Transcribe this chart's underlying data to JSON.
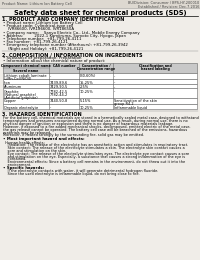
{
  "bg_color": "#f0ede8",
  "header_left": "Product Name: Lithium Ion Battery Cell",
  "header_right_line1": "BU/Division: Consumer / BPS-HY-200010",
  "header_right_line2": "Established / Revision: Dec.7.2016",
  "title": "Safety data sheet for chemical products (SDS)",
  "section1_title": "1. PRODUCT AND COMPANY IDENTIFICATION",
  "section1_lines": [
    "• Product name: Lithium Ion Battery Cell",
    "• Product code: Cylindrical-type cell",
    "    IVR86600, IVR186600, IVR18650A",
    "• Company name:    Sanyo Electric Co., Ltd., Mobile Energy Company",
    "• Address:         2022-1 Kamiiruma, Sumoto City, Hyogo, Japan",
    "• Telephone number:  +81-799-26-4111",
    "• Fax number:  +81-799-26-4121",
    "• Emergency telephone number (Afterhours): +81-799-26-3942",
    "    (Night and Holiday): +81-799-26-4121"
  ],
  "section2_title": "2. COMPOSITION / INFORMATION ON INGREDIENTS",
  "section2_intro": "• Substance or preparation: Preparation",
  "section2_sub": "• Information about the chemical nature of product:",
  "section3_title": "3. HAZARDS IDENTIFICATION",
  "section3_lines": [
    "For the battery cell, chemical materials are stored in a hermetically sealed metal case, designed to withstand",
    "temperatures and pressures encountered during normal use. As a result, during normal use, there is no",
    "physical danger of ignition or explosion and there is no danger of hazardous materials leakage.",
    "However, if exposed to a fire added mechanical shocks, decomposed, emitted electric of the metal case,",
    "the gas release cannot be operated. The battery cell case will be breached of the emissions, hazardous",
    "materials may be released.",
    "Moreover, if heated strongly by the surrounding fire, solid gas may be emitted."
  ],
  "section3_sub_title": "• Most important hazard and effects:",
  "section3_sub_lines": [
    "  Human health effects:",
    "    Inhalation: The release of the electrolyte has an anesthetic action and stimulates in respiratory tract.",
    "    Skin contact: The release of the electrolyte stimulates a skin. The electrolyte skin contact causes a",
    "    sore and stimulation on the skin.",
    "    Eye contact: The release of the electrolyte stimulates eyes. The electrolyte eye contact causes a sore",
    "    and stimulation on the eye. Especially, a substance that causes a strong inflammation of the eye is",
    "    contained.",
    "    Environmental effects: Since a battery cell remains in the environment, do not throw out it into the",
    "    environment."
  ],
  "section3_specific": "• Specific hazards:",
  "section3_specific_lines": [
    "    If the electrolyte contacts with water, it will generate detrimental hydrogen fluoride.",
    "    Since the used electrolyte is inflammable liquid, do not bring close to fire."
  ]
}
